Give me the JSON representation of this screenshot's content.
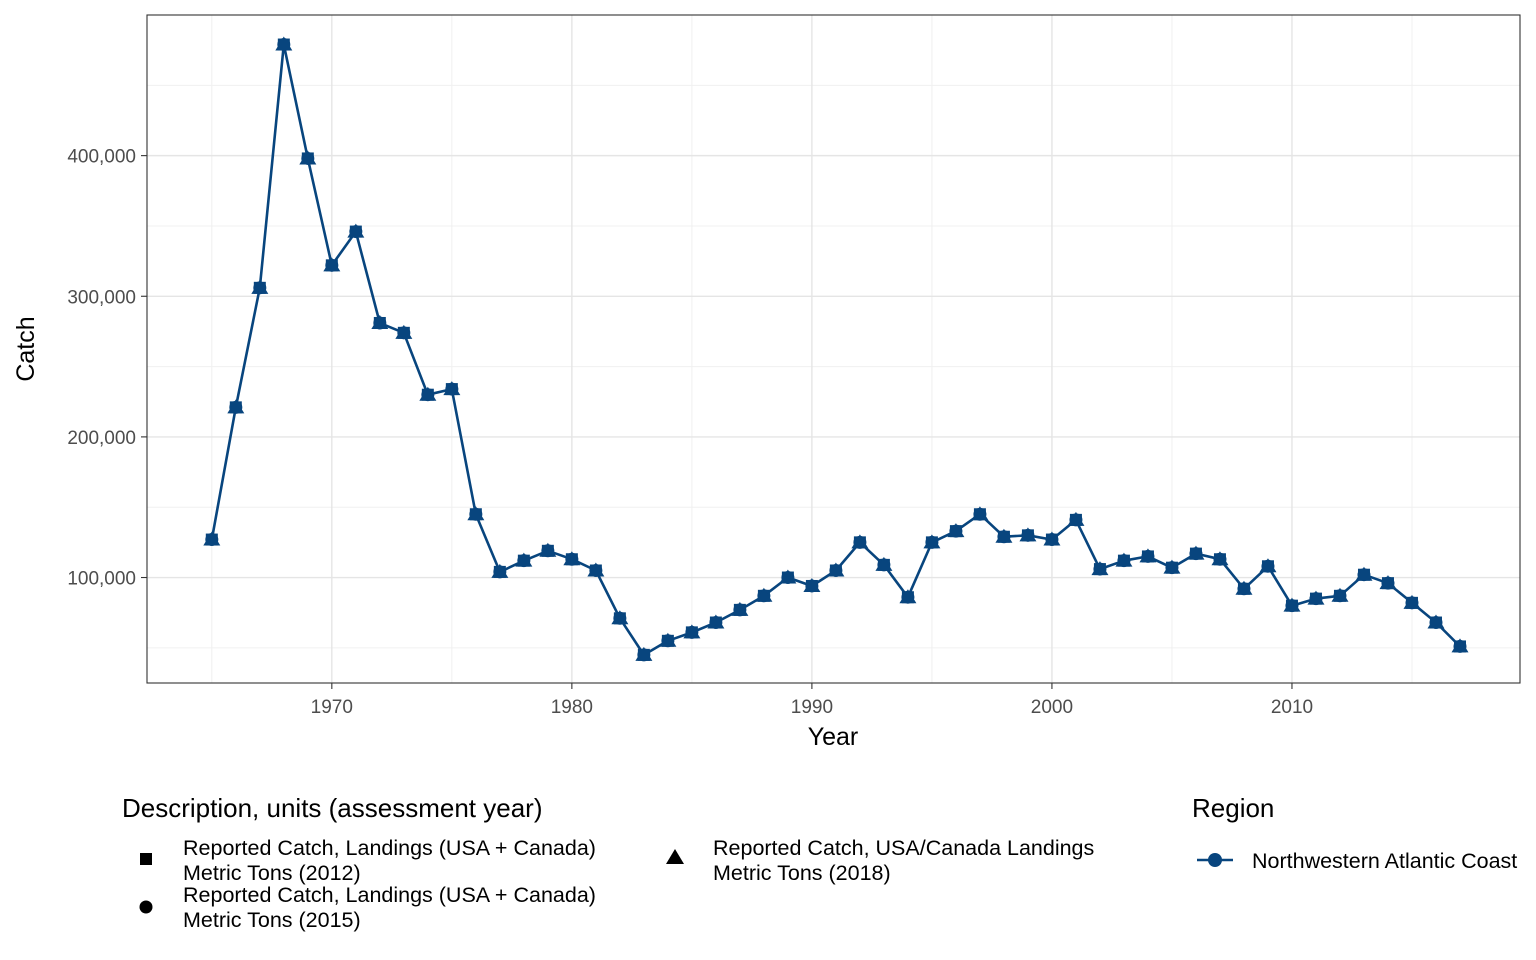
{
  "chart_data": {
    "type": "line",
    "xlabel": "Year",
    "ylabel": "Catch",
    "xlim": [
      1962.3,
      2019.5
    ],
    "ylim": [
      25000,
      500000
    ],
    "x_ticks": [
      1970,
      1980,
      1990,
      2000,
      2010
    ],
    "x_tick_labels": [
      "1970",
      "1980",
      "1990",
      "2000",
      "2010"
    ],
    "y_ticks": [
      100000,
      200000,
      300000,
      400000
    ],
    "y_tick_labels": [
      "100,000",
      "200,000",
      "300,000",
      "400,000"
    ],
    "grid": true,
    "line_color": "#08457e",
    "series": [
      {
        "name": "Northwestern Atlantic Coast",
        "x": [
          1965,
          1966,
          1967,
          1968,
          1969,
          1970,
          1971,
          1972,
          1973,
          1974,
          1975,
          1976,
          1977,
          1978,
          1979,
          1980,
          1981,
          1982,
          1983,
          1984,
          1985,
          1986,
          1987,
          1988,
          1989,
          1990,
          1991,
          1992,
          1993,
          1994,
          1995,
          1996,
          1997,
          1998,
          1999,
          2000,
          2001,
          2002,
          2003,
          2004,
          2005,
          2006,
          2007,
          2008,
          2009,
          2010,
          2011,
          2012,
          2013,
          2014,
          2015,
          2016,
          2017
        ],
        "y": [
          127000,
          221000,
          306000,
          479000,
          398000,
          322000,
          346000,
          281000,
          274000,
          230000,
          234000,
          145000,
          104000,
          112000,
          119000,
          113000,
          105000,
          71000,
          45000,
          55000,
          61000,
          68000,
          77000,
          87000,
          100000,
          94000,
          105000,
          125000,
          109000,
          86000,
          125000,
          133000,
          145000,
          129000,
          130000,
          127000,
          141000,
          106000,
          112000,
          115000,
          107000,
          117000,
          113000,
          92000,
          108000,
          80000,
          85000,
          87000,
          102000,
          96000,
          82000,
          68000,
          51000
        ]
      }
    ],
    "legends": {
      "description_title": "Description, units (assessment year)",
      "description_items": [
        {
          "shape": "square",
          "line1": "Reported Catch, Landings (USA + Canada)",
          "line2": "Metric Tons (2012)"
        },
        {
          "shape": "circle",
          "line1": "Reported Catch, Landings (USA + Canada)",
          "line2": "Metric Tons (2015)"
        },
        {
          "shape": "triangle",
          "line1": "Reported Catch, USA/Canada Landings",
          "line2": "Metric Tons (2018)"
        }
      ],
      "region_title": "Region",
      "region_items": [
        {
          "label": "Northwestern Atlantic Coast"
        }
      ]
    }
  }
}
